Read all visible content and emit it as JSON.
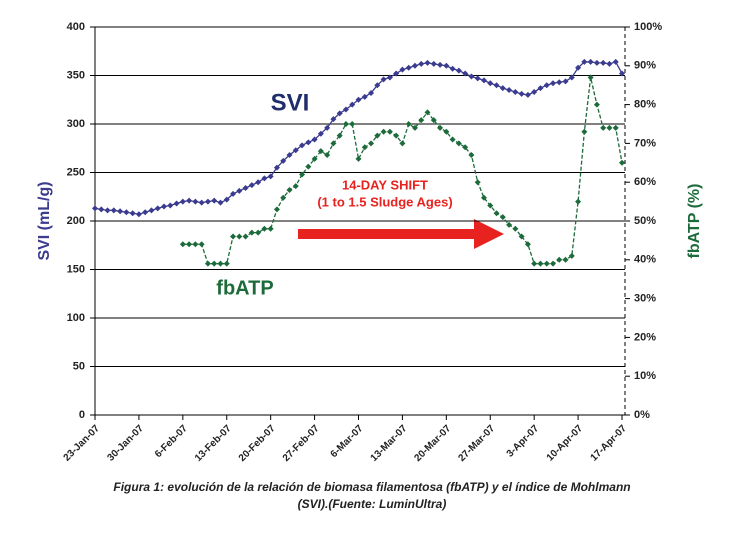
{
  "chart_data": {
    "type": "line",
    "annotations": [
      "SVI",
      "fbATP",
      "14-DAY SHIFT",
      "(1 to 1.5 Sludge Ages)"
    ],
    "y_label": "SVI (mL/g)",
    "y2_label": "fbATP (%)",
    "caption": [
      "Figura 1: evolución de la relación de biomasa filamentosa (fbATP) y el índice de Mohlmann",
      "(SVI).(Fuente: LuminUltra)"
    ],
    "x": [
      "2007-01-23",
      "2007-01-24",
      "2007-01-25",
      "2007-01-26",
      "2007-01-27",
      "2007-01-28",
      "2007-01-29",
      "2007-01-30",
      "2007-01-31",
      "2007-02-01",
      "2007-02-02",
      "2007-02-03",
      "2007-02-04",
      "2007-02-05",
      "2007-02-06",
      "2007-02-07",
      "2007-02-08",
      "2007-02-09",
      "2007-02-10",
      "2007-02-11",
      "2007-02-12",
      "2007-02-13",
      "2007-02-14",
      "2007-02-15",
      "2007-02-16",
      "2007-02-17",
      "2007-02-18",
      "2007-02-19",
      "2007-02-20",
      "2007-02-21",
      "2007-02-22",
      "2007-02-23",
      "2007-02-24",
      "2007-02-25",
      "2007-02-26",
      "2007-02-27",
      "2007-02-28",
      "2007-03-01",
      "2007-03-02",
      "2007-03-03",
      "2007-03-04",
      "2007-03-05",
      "2007-03-06",
      "2007-03-07",
      "2007-03-08",
      "2007-03-09",
      "2007-03-10",
      "2007-03-11",
      "2007-03-12",
      "2007-03-13",
      "2007-03-14",
      "2007-03-15",
      "2007-03-16",
      "2007-03-17",
      "2007-03-18",
      "2007-03-19",
      "2007-03-20",
      "2007-03-21",
      "2007-03-22",
      "2007-03-23",
      "2007-03-24",
      "2007-03-25",
      "2007-03-26",
      "2007-03-27",
      "2007-03-28",
      "2007-03-29",
      "2007-03-30",
      "2007-03-31",
      "2007-04-01",
      "2007-04-02",
      "2007-04-03",
      "2007-04-04",
      "2007-04-05",
      "2007-04-06",
      "2007-04-07",
      "2007-04-08",
      "2007-04-09",
      "2007-04-10",
      "2007-04-11",
      "2007-04-12",
      "2007-04-13",
      "2007-04-14",
      "2007-04-15",
      "2007-04-16",
      "2007-04-17"
    ],
    "series": [
      {
        "name": "SVI",
        "color": "#3b3b8f",
        "values": [
          213,
          212,
          211,
          211,
          210,
          209,
          208,
          207,
          209,
          211,
          213,
          215,
          216,
          218,
          220,
          221,
          220,
          219,
          220,
          221,
          219,
          222,
          228,
          231,
          234,
          237,
          240,
          244,
          246,
          255,
          262,
          268,
          273,
          278,
          281,
          284,
          290,
          296,
          305,
          311,
          315,
          320,
          325,
          328,
          332,
          340,
          346,
          348,
          352,
          356,
          358,
          360,
          362,
          363,
          362,
          361,
          360,
          357,
          355,
          352,
          349,
          347,
          345,
          342,
          340,
          337,
          335,
          333,
          331,
          330,
          333,
          337,
          340,
          342,
          343,
          344,
          348,
          358,
          364,
          364,
          363,
          363,
          362,
          364,
          352
        ]
      },
      {
        "name": "fbATP",
        "color": "#1d6b3b",
        "axis": "y2",
        "values": [
          null,
          null,
          null,
          null,
          null,
          null,
          null,
          null,
          null,
          null,
          null,
          null,
          null,
          null,
          44,
          44,
          44,
          44,
          39,
          39,
          39,
          39,
          46,
          46,
          46,
          47,
          47,
          48,
          48,
          53,
          56,
          58,
          59,
          62,
          64,
          66,
          68,
          67,
          70,
          72,
          75,
          75,
          66,
          69,
          70,
          72,
          73,
          73,
          72,
          70,
          75,
          74,
          76,
          78,
          76,
          74,
          73,
          71,
          70,
          69,
          67,
          60,
          56,
          54,
          52,
          51,
          49,
          48,
          46,
          44,
          39,
          39,
          39,
          39,
          40,
          40,
          41,
          55,
          73,
          87,
          80,
          74,
          74,
          74,
          65
        ]
      }
    ],
    "xlim": [
      "2007-01-23",
      "2007-04-17"
    ],
    "xticks": [
      {
        "value": "2007-01-23",
        "label": "23-Jan-07"
      },
      {
        "value": "2007-01-30",
        "label": "30-Jan-07"
      },
      {
        "value": "2007-02-06",
        "label": "6-Feb-07"
      },
      {
        "value": "2007-02-13",
        "label": "13-Feb-07"
      },
      {
        "value": "2007-02-20",
        "label": "20-Feb-07"
      },
      {
        "value": "2007-02-27",
        "label": "27-Feb-07"
      },
      {
        "value": "2007-03-06",
        "label": "6-Mar-07"
      },
      {
        "value": "2007-03-13",
        "label": "13-Mar-07"
      },
      {
        "value": "2007-03-20",
        "label": "20-Mar-07"
      },
      {
        "value": "2007-03-27",
        "label": "27-Mar-07"
      },
      {
        "value": "2007-04-03",
        "label": "3-Apr-07"
      },
      {
        "value": "2007-04-10",
        "label": "10-Apr-07"
      },
      {
        "value": "2007-04-17",
        "label": "17-Apr-07"
      }
    ],
    "ylim": [
      0,
      400
    ],
    "yticks": [
      0,
      50,
      100,
      150,
      200,
      250,
      300,
      350,
      400
    ],
    "y2lim": [
      0,
      100
    ],
    "y2ticks": [
      {
        "value": 0,
        "label": "0%"
      },
      {
        "value": 10,
        "label": "10%"
      },
      {
        "value": 20,
        "label": "20%"
      },
      {
        "value": 30,
        "label": "30%"
      },
      {
        "value": 40,
        "label": "40%"
      },
      {
        "value": 50,
        "label": "50%"
      },
      {
        "value": 60,
        "label": "60%"
      },
      {
        "value": 70,
        "label": "70%"
      },
      {
        "value": 80,
        "label": "80%"
      },
      {
        "value": 90,
        "label": "90%"
      },
      {
        "value": 100,
        "label": "100%"
      }
    ],
    "grid": true
  }
}
